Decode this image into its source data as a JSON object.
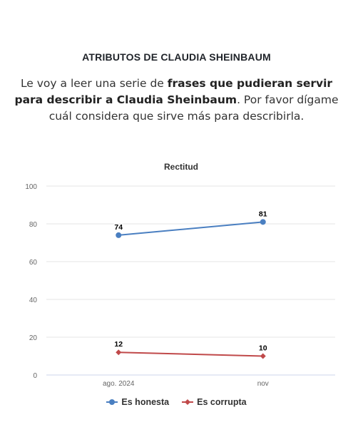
{
  "heading": "ATRIBUTOS DE CLAUDIA SHEINBAUM",
  "intro": {
    "part1": "Le voy a leer una serie de ",
    "bold": "frases que pudieran servir para describir a Claudia Sheinbaum",
    "part2": ". Por favor dígame cuál considera que sirve más para describirla."
  },
  "chart_data": {
    "type": "line",
    "title": "Rectitud",
    "categories": [
      "ago. 2024",
      "nov"
    ],
    "ylim": [
      0,
      100
    ],
    "yticks": [
      0,
      20,
      40,
      60,
      80,
      100
    ],
    "grid": true,
    "legend_position": "bottom",
    "series": [
      {
        "name": "Es honesta",
        "values": [
          74,
          81
        ],
        "color": "#4a7fc1",
        "marker": "circle"
      },
      {
        "name": "Es corrupta",
        "values": [
          12,
          10
        ],
        "color": "#c0494a",
        "marker": "diamond"
      }
    ]
  }
}
